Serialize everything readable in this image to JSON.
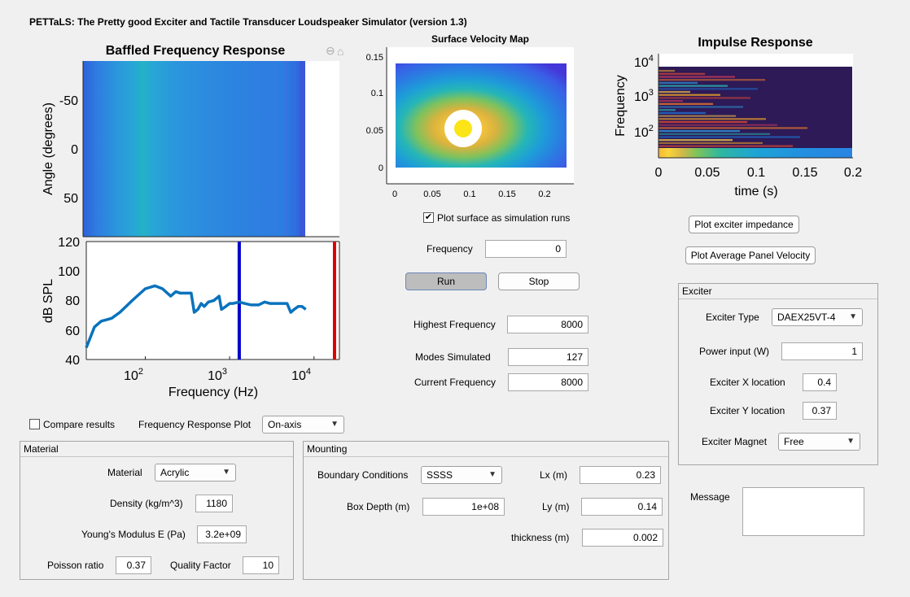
{
  "app": {
    "title": "PETTaLS: The Pretty good Exciter and Tactile Transducer Loudspeaker Simulator (version 1.3)"
  },
  "baffled_plot": {
    "title": "Baffled Frequency Response",
    "ylabel": "Angle (degrees)",
    "yticks": [
      "-50",
      "0",
      "50"
    ]
  },
  "spl_plot": {
    "ylabel": "dB SPL",
    "xlabel": "Frequency (Hz)",
    "yticks": [
      "120",
      "100",
      "80",
      "60",
      "40"
    ],
    "xtick_base": "10",
    "xtick_exps": [
      "2",
      "3",
      "4"
    ]
  },
  "velocity_map": {
    "title": "Surface Velocity Map",
    "yticks": [
      "0.15",
      "0.1",
      "0.05",
      "0"
    ],
    "xticks": [
      "0",
      "0.05",
      "0.1",
      "0.15",
      "0.2"
    ]
  },
  "impulse_plot": {
    "title": "Impulse Response",
    "ylabel": "Frequency",
    "xlabel": "time (s)",
    "ytick_base": "10",
    "ytick_exps": [
      "4",
      "3",
      "2"
    ],
    "xticks": [
      "0",
      "0.05",
      "0.1",
      "0.15",
      "0.2"
    ]
  },
  "chart_data": [
    {
      "type": "heatmap",
      "title": "Baffled Frequency Response",
      "ylabel": "Angle (degrees)",
      "ylim": [
        -90,
        90
      ],
      "xscale": "log",
      "xlim": [
        20,
        20000
      ]
    },
    {
      "type": "line",
      "xlabel": "Frequency (Hz)",
      "ylabel": "dB SPL",
      "xscale": "log",
      "xlim": [
        20,
        20000
      ],
      "ylim": [
        40,
        120
      ],
      "series": [
        {
          "x": [
            20,
            25,
            30,
            40,
            50,
            70,
            100,
            130,
            160,
            200,
            230,
            260,
            300,
            350,
            380,
            420,
            460,
            500,
            560,
            650,
            750,
            800,
            900,
            1000,
            1100,
            1300,
            1500,
            1800,
            2200,
            2600,
            3000,
            3500,
            3800,
            4200,
            4800,
            5300,
            5800,
            6500,
            7200,
            8000
          ],
          "y": [
            48,
            62,
            66,
            68,
            72,
            80,
            88,
            90,
            88,
            83,
            86,
            85,
            85,
            85,
            72,
            74,
            78,
            76,
            79,
            80,
            83,
            74,
            76,
            78,
            78,
            79,
            78,
            77,
            77,
            79,
            78,
            78,
            78,
            78,
            78,
            72,
            74,
            76,
            76,
            74
          ]
        }
      ],
      "markers": [
        {
          "x": 1300,
          "color": "#0000cc"
        },
        {
          "x": 17500,
          "color": "#dd0000"
        }
      ]
    },
    {
      "type": "heatmap",
      "title": "Surface Velocity Map",
      "xlim": [
        0,
        0.23
      ],
      "ylim": [
        0,
        0.14
      ],
      "exciter_position": [
        0.092,
        0.052
      ]
    },
    {
      "type": "heatmap",
      "title": "Impulse Response",
      "xlabel": "time (s)",
      "ylabel": "Frequency",
      "xlim": [
        0,
        0.2
      ],
      "yscale": "log"
    }
  ],
  "controls": {
    "plot_surface_label": "Plot surface as simulation runs",
    "frequency_label": "Frequency",
    "frequency_value": "0",
    "run_label": "Run",
    "stop_label": "Stop",
    "highest_freq_label": "Highest Frequency",
    "highest_freq_value": "8000",
    "modes_label": "Modes Simulated",
    "modes_value": "127",
    "current_freq_label": "Current Frequency",
    "current_freq_value": "8000",
    "compare_label": "Compare results",
    "freq_resp_plot_label": "Frequency Response Plot",
    "freq_resp_plot_value": "On-axis",
    "plot_impedance_label": "Plot exciter impedance",
    "plot_avg_velocity_label": "Plot Average Panel Velocity",
    "message_label": "Message"
  },
  "exciter": {
    "title": "Exciter",
    "type_label": "Exciter Type",
    "type_value": "DAEX25VT-4",
    "power_label": "Power input (W)",
    "power_value": "1",
    "x_label": "Exciter X location",
    "x_value": "0.4",
    "y_label": "Exciter Y location",
    "y_value": "0.37",
    "magnet_label": "Exciter Magnet",
    "magnet_value": "Free"
  },
  "material": {
    "title": "Material",
    "material_label": "Material",
    "material_value": "Acrylic",
    "density_label": "Density (kg/m^3)",
    "density_value": "1180",
    "youngs_label": "Young's Modulus E (Pa)",
    "youngs_value": "3.2e+09",
    "poisson_label": "Poisson ratio",
    "poisson_value": "0.37",
    "quality_label": "Quality Factor",
    "quality_value": "10"
  },
  "mounting": {
    "title": "Mounting",
    "bc_label": "Boundary Conditions",
    "bc_value": "SSSS",
    "lx_label": "Lx (m)",
    "lx_value": "0.23",
    "box_label": "Box Depth (m)",
    "box_value": "1e+08",
    "ly_label": "Ly (m)",
    "ly_value": "0.14",
    "thickness_label": "thickness (m)",
    "thickness_value": "0.002"
  }
}
